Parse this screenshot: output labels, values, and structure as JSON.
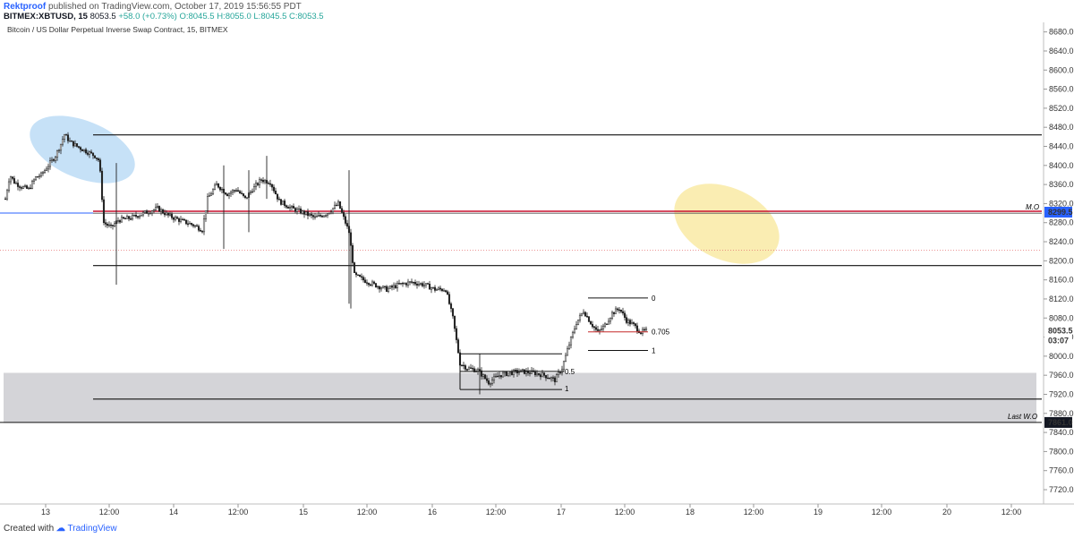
{
  "header": {
    "author": "Rektproof",
    "published": "published on TradingView.com, October 17, 2019 15:56:55 PDT",
    "symbol_interval": "BITMEX:XBTUSD, 15",
    "last": "8053.5",
    "change": "+58.0 (+0.73%)",
    "open": "O:8045.5",
    "high": "H:8055.0",
    "low": "L:8045.5",
    "close": "C:8053.5"
  },
  "footer": {
    "created_with": "Created with",
    "brand": "TradingView"
  },
  "colors": {
    "candle": "#222222",
    "grey_zone": "#d4d4d8",
    "blue_ellipse": "#bcdcf6",
    "yellow_ellipse": "#f9ebaa",
    "mo_line": "#c8102e",
    "blue_line": "#2962ff",
    "price_tag": "#2962ff",
    "fib_red": "#c62828"
  },
  "chart_data": {
    "type": "candlestick",
    "title": "Bitcoin / US Dollar Perpetual Inverse Swap Contract, 15, BITMEX",
    "ylim": [
      7690,
      8700
    ],
    "y_ticks": [
      8680,
      8640,
      8600,
      8560,
      8520,
      8480,
      8440,
      8400,
      8360,
      8320,
      8280,
      8240,
      8200,
      8160,
      8120,
      8080,
      8040,
      8000,
      7960,
      7920,
      7880,
      7840,
      7800,
      7760,
      7720
    ],
    "x_ticks": [
      "13",
      "12:00",
      "14",
      "12:00",
      "15",
      "12:00",
      "16",
      "12:00",
      "17",
      "12:00",
      "18",
      "12:00",
      "19",
      "12:00",
      "20",
      "12:00"
    ],
    "price_path": [
      [
        0,
        8330
      ],
      [
        5,
        8380
      ],
      [
        10,
        8365
      ],
      [
        18,
        8355
      ],
      [
        26,
        8350
      ],
      [
        34,
        8375
      ],
      [
        40,
        8380
      ],
      [
        48,
        8400
      ],
      [
        56,
        8420
      ],
      [
        62,
        8445
      ],
      [
        66,
        8465
      ],
      [
        72,
        8450
      ],
      [
        80,
        8440
      ],
      [
        90,
        8430
      ],
      [
        100,
        8420
      ],
      [
        105,
        8410
      ],
      [
        110,
        8280
      ],
      [
        118,
        8270
      ],
      [
        126,
        8285
      ],
      [
        140,
        8290
      ],
      [
        155,
        8300
      ],
      [
        170,
        8310
      ],
      [
        182,
        8295
      ],
      [
        195,
        8285
      ],
      [
        210,
        8275
      ],
      [
        220,
        8265
      ],
      [
        226,
        8330
      ],
      [
        236,
        8360
      ],
      [
        248,
        8340
      ],
      [
        258,
        8350
      ],
      [
        268,
        8330
      ],
      [
        276,
        8350
      ],
      [
        286,
        8370
      ],
      [
        296,
        8365
      ],
      [
        306,
        8325
      ],
      [
        320,
        8310
      ],
      [
        334,
        8300
      ],
      [
        346,
        8290
      ],
      [
        360,
        8300
      ],
      [
        372,
        8320
      ],
      [
        384,
        8260
      ],
      [
        390,
        8170
      ],
      [
        400,
        8160
      ],
      [
        412,
        8150
      ],
      [
        426,
        8140
      ],
      [
        440,
        8150
      ],
      [
        454,
        8155
      ],
      [
        468,
        8150
      ],
      [
        480,
        8140
      ],
      [
        492,
        8140
      ],
      [
        500,
        8080
      ],
      [
        508,
        7985
      ],
      [
        516,
        7975
      ],
      [
        528,
        7970
      ],
      [
        540,
        7945
      ],
      [
        552,
        7960
      ],
      [
        564,
        7965
      ],
      [
        576,
        7968
      ],
      [
        590,
        7965
      ],
      [
        602,
        7960
      ],
      [
        614,
        7950
      ],
      [
        622,
        7975
      ],
      [
        630,
        8025
      ],
      [
        638,
        8070
      ],
      [
        646,
        8095
      ],
      [
        654,
        8070
      ],
      [
        662,
        8050
      ],
      [
        670,
        8065
      ],
      [
        678,
        8090
      ],
      [
        686,
        8100
      ],
      [
        694,
        8075
      ],
      [
        702,
        8065
      ],
      [
        710,
        8050
      ],
      [
        716,
        8053.5
      ]
    ],
    "levels": [
      {
        "name": "top-resistance",
        "price": 8464
      },
      {
        "name": "mid-support",
        "price": 8190
      },
      {
        "name": "bottom-support",
        "price": 7910
      }
    ],
    "mo_label": "M.O",
    "mo_price": 8302,
    "last_wo_label": "Last W.O",
    "zone": {
      "top": 7965,
      "bottom": 7860
    },
    "fib1": {
      "top": 8005,
      "mid": 7968,
      "bottom": 7930,
      "label_mid": "0.5",
      "label_bottom": "1"
    },
    "fib2": {
      "top": 8122,
      "mid": 8051,
      "bottom": 8012,
      "label_top": "0",
      "label_mid": "0.705",
      "label_bottom": "1"
    },
    "price_tags": [
      {
        "value": "8299.5",
        "price": 8302,
        "style": "blue"
      },
      {
        "value": "8053.5",
        "price": 8053.5,
        "style": "plain"
      },
      {
        "value": "03:07",
        "price": 8033,
        "style": "plain"
      },
      {
        "value": "7861.0",
        "price": 7861,
        "style": "dark"
      }
    ]
  }
}
